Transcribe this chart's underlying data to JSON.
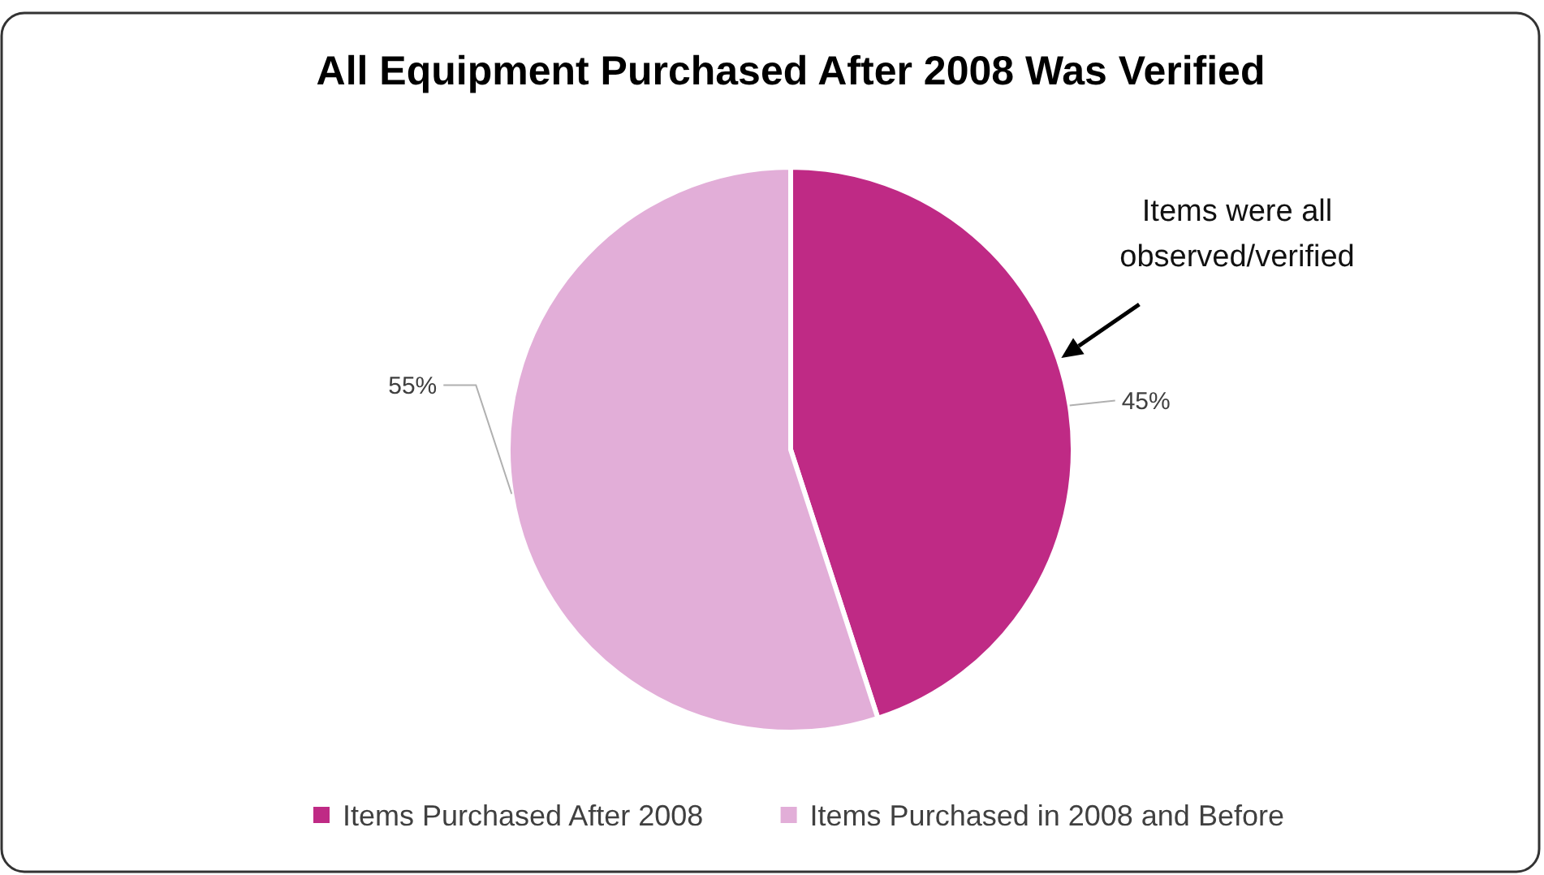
{
  "chart_data": {
    "type": "pie",
    "title": "All Equipment Purchased After 2008 Was Verified",
    "categories": [
      "Items Purchased After 2008",
      "Items Purchased in 2008 and Before"
    ],
    "values": [
      45,
      55
    ],
    "colors": [
      "#bf2a85",
      "#e2aed8"
    ],
    "value_labels": [
      "45%",
      "55%"
    ],
    "legend": "bottom",
    "annotations": [
      {
        "text": "Items were all observed/verified",
        "x": "Items Purchased After 2008"
      }
    ]
  }
}
